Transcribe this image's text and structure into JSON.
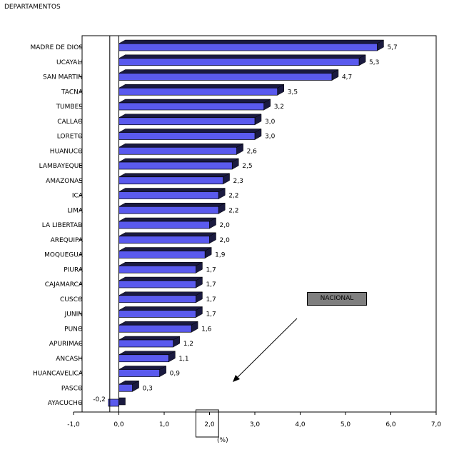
{
  "chart_data": {
    "type": "bar",
    "orientation": "horizontal",
    "title": "",
    "ylabel": "DEPARTAMENTOS",
    "xlabel": "(%)",
    "xlim": [
      -1,
      7
    ],
    "xticks": [
      "-1,0",
      "0,0",
      "1,0",
      "2,0",
      "3,0",
      "4,0",
      "5,0",
      "6,0",
      "7,0"
    ],
    "xtick_values": [
      -1,
      0,
      1,
      2,
      3,
      4,
      5,
      6,
      7
    ],
    "categories": [
      "MADRE DE DIOS",
      "UCAYALI",
      "SAN MARTIN",
      "TACNA",
      "TUMBES",
      "CALLAO",
      "LORETO",
      "HUANUCO",
      "LAMBAYEQUE",
      "AMAZONAS",
      "ICA",
      "LIMA",
      "LA LIBERTAD",
      "AREQUIPA",
      "MOQUEGUA",
      "PIURA",
      "CAJAMARCA",
      "CUSCO",
      "JUNIN",
      "PUNO",
      "APURIMAC",
      "ANCASH",
      "HUANCAVELICA",
      "PASCO",
      "AYACUCHO"
    ],
    "values": [
      5.7,
      5.3,
      4.7,
      3.5,
      3.2,
      3.0,
      3.0,
      2.6,
      2.5,
      2.3,
      2.2,
      2.2,
      2.0,
      2.0,
      1.9,
      1.7,
      1.7,
      1.7,
      1.7,
      1.6,
      1.2,
      1.1,
      0.9,
      0.3,
      -0.2
    ],
    "value_labels": [
      "5,7",
      "5,3",
      "4,7",
      "3,5",
      "3,2",
      "3,0",
      "3,0",
      "2,6",
      "2,5",
      "2,3",
      "2,2",
      "2,2",
      "2,0",
      "2,0",
      "1,9",
      "1,7",
      "1,7",
      "1,7",
      "1,7",
      "1,6",
      "1,2",
      "1,1",
      "0,9",
      "0,3",
      "-0,2"
    ],
    "reference_line": {
      "label": "NACIONAL",
      "value": 2.0
    },
    "colors": {
      "bar_face": "#5a5aee",
      "bar_side": "#1a1a40",
      "negative_bar": "#1a1a40",
      "legend_box": "#7f7f7f"
    },
    "grid": false,
    "style": "3d-bar"
  }
}
